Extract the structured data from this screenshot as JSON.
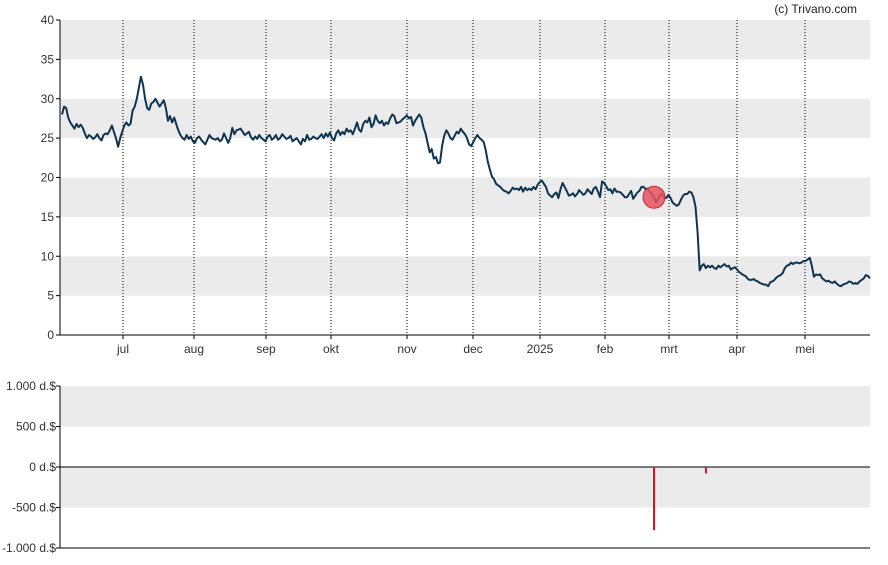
{
  "credit": "(c) Trivano.com",
  "colors": {
    "line": "#0d3552",
    "band": "#ebebeb",
    "grid": "#000000",
    "marker": "#e8515f",
    "marker_stroke": "#c0303f",
    "volume_bar": "#e0101e"
  },
  "chart_data": [
    {
      "type": "line",
      "title": "",
      "xlabel": "",
      "ylabel": "",
      "ylim": [
        0,
        40
      ],
      "y_ticks": [
        "0",
        "5",
        "10",
        "15",
        "20",
        "25",
        "30",
        "35",
        "40"
      ],
      "x_ticks": [
        "jul",
        "aug",
        "sep",
        "okt",
        "nov",
        "dec",
        "2025",
        "feb",
        "mrt",
        "apr",
        "mei"
      ],
      "grid": "vertical dotted at month ticks, alternating horizontal bands",
      "series": [
        {
          "values": [
            28.0,
            29.0,
            28.8,
            27.6,
            27.0,
            26.6,
            26.2,
            26.8,
            26.4,
            26.7,
            26.3,
            25.6,
            25.0,
            25.4,
            25.2,
            24.9,
            25.1,
            25.5,
            25.0,
            24.7,
            25.4,
            25.6,
            25.5,
            26.0,
            26.6,
            25.8,
            25.0,
            23.9,
            25.0,
            25.8,
            26.6,
            27.0,
            26.6,
            26.8,
            28.5,
            29.0,
            30.0,
            31.4,
            32.8,
            31.8,
            30.0,
            28.8,
            28.6,
            29.4,
            29.6,
            30.0,
            29.5,
            29.0,
            29.4,
            29.8,
            28.8,
            27.2,
            27.8,
            27.0,
            27.6,
            26.8,
            26.0,
            25.4,
            25.0,
            24.8,
            25.4,
            24.9,
            25.2,
            24.6,
            24.4,
            25.0,
            25.2,
            24.8,
            24.5,
            24.2,
            24.8,
            25.4,
            25.0,
            24.9,
            24.8,
            25.0,
            24.6,
            24.8,
            25.6,
            25.0,
            24.4,
            25.0,
            26.3,
            25.5,
            26.0,
            26.1,
            26.2,
            25.8,
            25.4,
            25.6,
            25.8,
            25.1,
            24.8,
            25.2,
            24.9,
            25.4,
            25.0,
            24.8,
            24.6,
            25.2,
            25.4,
            24.8,
            25.0,
            25.4,
            24.8,
            25.0,
            25.5,
            25.2,
            24.9,
            25.0,
            25.3,
            24.6,
            24.8,
            25.0,
            24.6,
            24.2,
            24.9,
            24.6,
            25.4,
            24.8,
            24.9,
            25.2,
            25.0,
            24.9,
            25.2,
            25.5,
            25.0,
            25.6,
            25.2,
            25.7,
            25.0,
            24.7,
            25.6,
            26.0,
            25.4,
            25.8,
            25.5,
            26.2,
            25.8,
            26.0,
            25.5,
            26.2,
            27.0,
            26.1,
            25.8,
            26.8,
            27.2,
            27.0,
            27.6,
            26.4,
            26.8,
            27.9,
            27.2,
            26.9,
            27.2,
            26.6,
            27.0,
            26.8,
            27.5,
            28.0,
            27.8,
            26.9,
            27.0,
            27.1,
            27.4,
            27.6,
            27.9,
            27.5,
            27.7,
            26.6,
            27.2,
            27.6,
            28.0,
            27.6,
            26.4,
            25.6,
            24.4,
            23.2,
            23.6,
            22.4,
            22.6,
            21.8,
            21.9,
            24.0,
            25.3,
            26.0,
            25.6,
            25.0,
            24.8,
            25.3,
            25.8,
            25.6,
            26.2,
            25.8,
            25.5,
            25.0,
            24.2,
            24.0,
            24.5,
            25.0,
            25.4,
            25.0,
            24.8,
            24.5,
            23.5,
            22.0,
            21.0,
            20.1,
            19.8,
            19.2,
            19.0,
            18.8,
            18.5,
            18.3,
            18.2,
            18.0,
            18.3,
            18.7,
            18.5,
            18.6,
            18.4,
            18.8,
            18.2,
            18.7,
            18.4,
            18.6,
            18.4,
            18.8,
            18.5,
            19.1,
            19.4,
            19.6,
            19.2,
            18.8,
            18.0,
            17.7,
            17.5,
            17.9,
            18.1,
            17.4,
            18.5,
            19.3,
            18.8,
            18.3,
            17.7,
            17.8,
            18.0,
            17.6,
            17.9,
            18.4,
            18.1,
            17.8,
            18.0,
            18.5,
            18.2,
            17.9,
            18.6,
            18.8,
            18.2,
            17.5,
            19.5,
            19.3,
            18.9,
            18.4,
            18.5,
            18.0,
            18.6,
            18.2,
            18.2,
            18.1,
            17.8,
            17.5,
            17.5,
            17.9,
            18.3,
            17.3,
            17.7,
            18.1,
            18.3,
            18.8,
            18.8,
            18.5,
            18.6,
            18.2,
            17.9,
            17.5,
            16.8,
            17.3,
            17.8,
            17.9,
            17.5,
            17.4,
            17.8,
            17.4,
            16.8,
            16.6,
            16.4,
            16.6,
            17.2,
            17.7,
            17.9,
            17.9,
            18.2,
            18.1,
            17.5,
            16.3,
            13.0,
            8.2,
            8.8,
            9.0,
            8.5,
            8.8,
            8.6,
            8.8,
            8.5,
            8.4,
            8.8,
            8.6,
            8.8,
            9.0,
            8.7,
            8.8,
            8.3,
            8.5,
            8.6,
            8.3,
            8.0,
            7.8,
            7.6,
            7.5,
            7.2,
            7.0,
            7.0,
            7.1,
            6.9,
            6.8,
            6.6,
            6.5,
            6.4,
            6.4,
            6.2,
            6.7,
            6.8,
            7.0,
            7.3,
            7.5,
            7.6,
            7.9,
            8.5,
            8.8,
            8.9,
            9.2,
            9.0,
            9.2,
            9.2,
            9.1,
            9.2,
            9.4,
            9.4,
            9.6,
            9.8,
            8.8,
            7.4,
            7.7,
            7.6,
            7.7,
            7.2,
            7.0,
            6.8,
            6.9,
            6.7,
            6.6,
            6.8,
            6.5,
            6.3,
            6.2,
            6.4,
            6.5,
            6.6,
            6.8,
            6.7,
            6.5,
            6.6,
            6.5,
            6.8,
            7.0,
            7.2,
            7.6,
            7.5,
            7.2
          ]
        }
      ],
      "highlight_point_index": 285
    },
    {
      "type": "bar",
      "title": "",
      "xlabel": "",
      "ylabel": "",
      "ylim": [
        -1000,
        1000
      ],
      "y_ticks": [
        "1.000 d.$",
        "500 d.$",
        "0 d.$",
        "-500 d.$",
        "-1.000 d.$"
      ],
      "grid": "alternating horizontal bands, zero baseline",
      "bars": [
        {
          "index": 285,
          "value": -780
        },
        {
          "index": 310,
          "value": -80
        }
      ]
    }
  ]
}
